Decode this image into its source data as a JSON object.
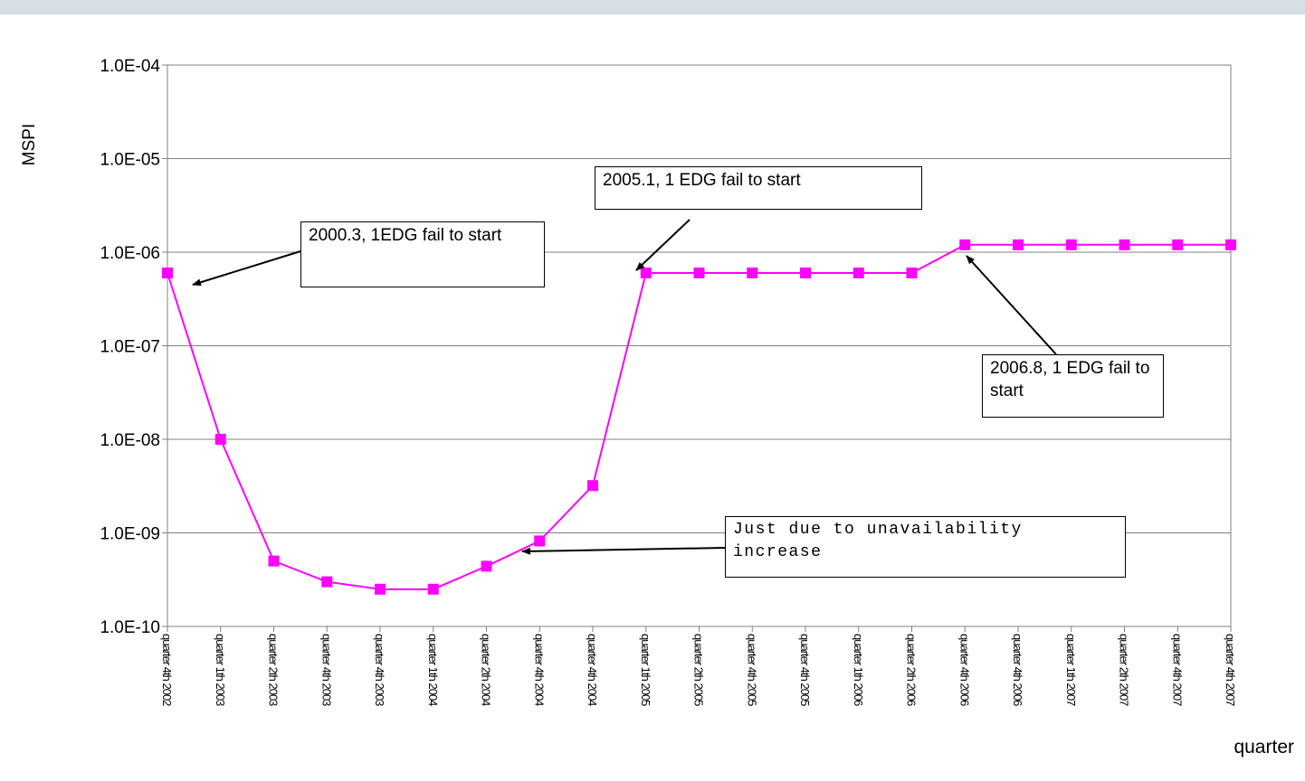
{
  "chart_data": {
    "type": "line",
    "ylabel": "MSPI",
    "xlabel": "quarter",
    "y_scale": "log",
    "ylim": [
      1e-10,
      0.0001
    ],
    "y_ticks": [
      "1.0E-10",
      "1.0E-09",
      "1.0E-08",
      "1.0E-07",
      "1.0E-06",
      "1.0E-05",
      "1.0E-04"
    ],
    "grid": "horizontal",
    "categories": [
      "quarter 4th 2002",
      "quarter 1th 2003",
      "quarter 2th 2003",
      "quarter 4th 2003",
      "quarter 4th 2003",
      "quarter 1th 2004",
      "quarter 2th 2004",
      "quarter 4th 2004",
      "quarter 4th 2004",
      "quarter 1th 2005",
      "quarter 2th 2005",
      "quarter 4th 2005",
      "quarter 4th 2005",
      "quarter 1th 2006",
      "quarter 2th 2006",
      "quarter 4th 2006",
      "quarter 4th 2006",
      "quarter 1th 2007",
      "quarter 2th 2007",
      "quarter 4th 2007",
      "quarter 4th 2007"
    ],
    "series": [
      {
        "color": "#ff00ff",
        "marker": "square",
        "values": [
          6e-07,
          1e-08,
          5e-10,
          3e-10,
          2.5e-10,
          2.5e-10,
          4.4e-10,
          8.2e-10,
          3.2e-09,
          6e-07,
          6e-07,
          6e-07,
          6e-07,
          6e-07,
          6e-07,
          1.2e-06,
          1.2e-06,
          1.2e-06,
          1.2e-06,
          1.2e-06,
          1.2e-06
        ]
      }
    ],
    "annotations": [
      {
        "text": "2000.3, 1EDG fail to start",
        "points_to_index": 0
      },
      {
        "text": "2005.1, 1 EDG fail to start",
        "points_to_index": 9
      },
      {
        "text": "2006.8, 1 EDG fail to start",
        "points_to_index": 15
      },
      {
        "text": "Just due to unavailability increase",
        "points_to_index": 7
      }
    ]
  }
}
